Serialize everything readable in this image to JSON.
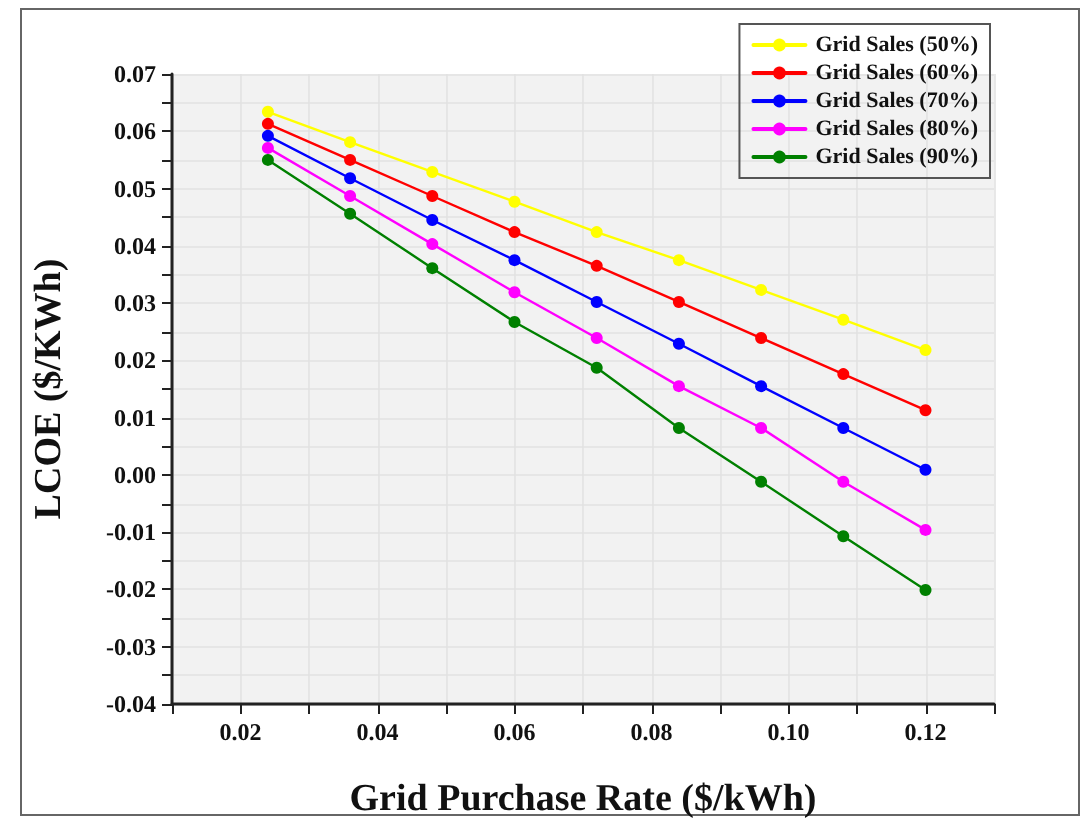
{
  "chart_data": {
    "type": "line",
    "xlabel": "Grid Purchase Rate ($/kWh)",
    "ylabel": "LCOE ($/KWh)",
    "x": [
      0.024,
      0.036,
      0.048,
      0.06,
      0.072,
      0.084,
      0.096,
      0.108,
      0.12
    ],
    "series": [
      {
        "name": "Grid Sales (50%)",
        "color": "#ffff00",
        "values": [
          0.0634,
          0.0581,
          0.0529,
          0.0477,
          0.0424,
          0.0375,
          0.0323,
          0.0271,
          0.0218
        ]
      },
      {
        "name": "Grid Sales (60%)",
        "color": "#ff0000",
        "values": [
          0.0613,
          0.055,
          0.0487,
          0.0424,
          0.0365,
          0.0302,
          0.0239,
          0.0176,
          0.0113
        ]
      },
      {
        "name": "Grid Sales (70%)",
        "color": "#0000ff",
        "values": [
          0.0592,
          0.0518,
          0.0445,
          0.0375,
          0.0302,
          0.0229,
          0.0155,
          0.0082,
          0.0009
        ]
      },
      {
        "name": "Grid Sales (80%)",
        "color": "#ff00ff",
        "values": [
          0.0571,
          0.0487,
          0.0403,
          0.0319,
          0.0239,
          0.0155,
          0.0082,
          -0.0012,
          -0.0096
        ]
      },
      {
        "name": "Grid Sales (90%)",
        "color": "#008000",
        "values": [
          0.055,
          0.0456,
          0.0361,
          0.0267,
          0.0187,
          0.0082,
          -0.0012,
          -0.0107,
          -0.0201
        ]
      }
    ],
    "xlim": [
      0.01,
      0.13
    ],
    "xticks": [
      {
        "value": 0.01,
        "label": null
      },
      {
        "value": 0.02,
        "label": "0.02"
      },
      {
        "value": 0.03,
        "label": null
      },
      {
        "value": 0.04,
        "label": "0.04"
      },
      {
        "value": 0.05,
        "label": null
      },
      {
        "value": 0.06,
        "label": "0.06"
      },
      {
        "value": 0.07,
        "label": null
      },
      {
        "value": 0.08,
        "label": "0.08"
      },
      {
        "value": 0.09,
        "label": null
      },
      {
        "value": 0.1,
        "label": "0.10"
      },
      {
        "value": 0.11,
        "label": null
      },
      {
        "value": 0.12,
        "label": "0.12"
      },
      {
        "value": 0.13,
        "label": null
      }
    ],
    "ylim": [
      -0.04,
      0.07
    ],
    "yticks": [
      {
        "value": -0.04,
        "label": "-0.04"
      },
      {
        "value": -0.035,
        "label": null
      },
      {
        "value": -0.03,
        "label": "-0.03"
      },
      {
        "value": -0.025,
        "label": null
      },
      {
        "value": -0.02,
        "label": "-0.02"
      },
      {
        "value": -0.015,
        "label": null
      },
      {
        "value": -0.01,
        "label": "-0.01"
      },
      {
        "value": -0.005,
        "label": null
      },
      {
        "value": 0,
        "label": "0.00"
      },
      {
        "value": 0.005,
        "label": null
      },
      {
        "value": 0.01,
        "label": "0.01"
      },
      {
        "value": 0.015,
        "label": null
      },
      {
        "value": 0.02,
        "label": "0.02"
      },
      {
        "value": 0.025,
        "label": null
      },
      {
        "value": 0.03,
        "label": "0.03"
      },
      {
        "value": 0.035,
        "label": null
      },
      {
        "value": 0.04,
        "label": "0.04"
      },
      {
        "value": 0.045,
        "label": null
      },
      {
        "value": 0.05,
        "label": "0.05"
      },
      {
        "value": 0.055,
        "label": null
      },
      {
        "value": 0.06,
        "label": "0.06"
      },
      {
        "value": 0.065,
        "label": null
      },
      {
        "value": 0.07,
        "label": "0.07"
      }
    ],
    "grid": true,
    "legend": "top right",
    "marker": "circle",
    "line_style": "solid"
  }
}
